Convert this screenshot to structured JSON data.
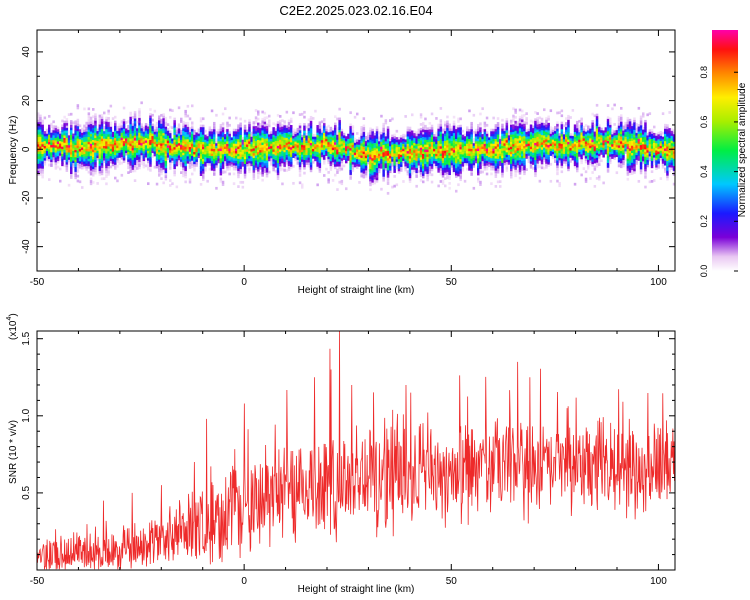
{
  "figure": {
    "title": "C2E2.2025.023.02.16.E04"
  },
  "chart_data": [
    {
      "type": "heatmap",
      "title": "C2E2.2025.023.02.16.E04",
      "xlabel": "Height of straight line (km)",
      "ylabel": "Frequency (Hz)",
      "xlim": [
        -50,
        104
      ],
      "ylim": [
        -50,
        49
      ],
      "x_ticks": [
        -50,
        0,
        50,
        100
      ],
      "y_ticks": [
        -40,
        -20,
        0,
        20,
        40
      ],
      "colorbar": {
        "label": "Normalized spectral amplitude",
        "range": [
          0,
          0.97
        ],
        "ticks": [
          0.0,
          0.2,
          0.4,
          0.6,
          0.8
        ],
        "colormap": "rainbow (white-violet-blue-cyan-green-yellow-red-magenta)"
      },
      "ridge_center_hz": [
        {
          "x": -50,
          "y": 1.5
        },
        {
          "x": -40,
          "y": 1
        },
        {
          "x": -30,
          "y": 2
        },
        {
          "x": -25,
          "y": 3
        },
        {
          "x": -20,
          "y": 2
        },
        {
          "x": -10,
          "y": 0
        },
        {
          "x": 0,
          "y": 0
        },
        {
          "x": 10,
          "y": 1
        },
        {
          "x": 20,
          "y": 2
        },
        {
          "x": 30,
          "y": -2
        },
        {
          "x": 40,
          "y": -1
        },
        {
          "x": 50,
          "y": 0
        },
        {
          "x": 60,
          "y": 0
        },
        {
          "x": 70,
          "y": 2
        },
        {
          "x": 80,
          "y": 2
        },
        {
          "x": 90,
          "y": 3
        },
        {
          "x": 100,
          "y": 0
        }
      ]
    },
    {
      "type": "line",
      "xlabel": "Height of straight line (km)",
      "ylabel": "SNR (10 * v/v)",
      "y_multiplier_label": "(x10",
      "y_multiplier_exp": "4",
      "y_multiplier_close": ")",
      "xlim": [
        -50,
        104
      ],
      "ylim": [
        0.0,
        1.55
      ],
      "x_ticks": [
        -50,
        0,
        50,
        100
      ],
      "y_ticks": [
        0.5,
        1.0,
        1.5
      ],
      "color": "#ee2a2a",
      "envelope": [
        {
          "x": -50,
          "mean": 0.1,
          "spread": 0.12
        },
        {
          "x": -30,
          "mean": 0.12,
          "spread": 0.12
        },
        {
          "x": -20,
          "mean": 0.2,
          "spread": 0.15
        },
        {
          "x": -10,
          "mean": 0.3,
          "spread": 0.22
        },
        {
          "x": 0,
          "mean": 0.42,
          "spread": 0.28
        },
        {
          "x": 10,
          "mean": 0.52,
          "spread": 0.32
        },
        {
          "x": 20,
          "mean": 0.58,
          "spread": 0.35
        },
        {
          "x": 30,
          "mean": 0.62,
          "spread": 0.35
        },
        {
          "x": 40,
          "mean": 0.63,
          "spread": 0.33
        },
        {
          "x": 50,
          "mean": 0.64,
          "spread": 0.3
        },
        {
          "x": 60,
          "mean": 0.65,
          "spread": 0.3
        },
        {
          "x": 70,
          "mean": 0.66,
          "spread": 0.28
        },
        {
          "x": 80,
          "mean": 0.66,
          "spread": 0.28
        },
        {
          "x": 90,
          "mean": 0.66,
          "spread": 0.26
        },
        {
          "x": 104,
          "mean": 0.65,
          "spread": 0.25
        }
      ],
      "peaks": [
        {
          "x": 23,
          "y": 1.55
        },
        {
          "x": 21,
          "y": 1.3
        },
        {
          "x": 17,
          "y": 1.25
        },
        {
          "x": 26,
          "y": 1.2
        },
        {
          "x": 39,
          "y": 1.2
        },
        {
          "x": 66,
          "y": 1.35
        },
        {
          "x": 69,
          "y": 1.25
        },
        {
          "x": -9,
          "y": 0.98
        },
        {
          "x": 0,
          "y": 1.08
        },
        {
          "x": 78,
          "y": 1.05
        },
        {
          "x": 93,
          "y": 0.98
        },
        {
          "x": 102,
          "y": 0.97
        },
        {
          "x": -27,
          "y": 0.5
        },
        {
          "x": -34,
          "y": 0.45
        },
        {
          "x": -20,
          "y": 0.55
        },
        {
          "x": -12,
          "y": 0.7
        }
      ]
    }
  ]
}
